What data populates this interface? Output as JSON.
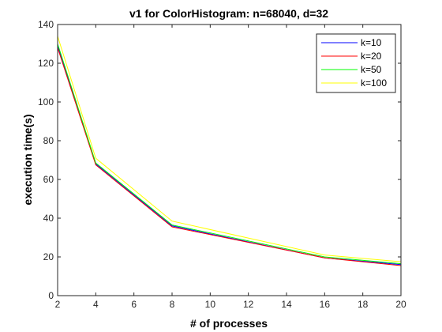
{
  "chart_data": {
    "type": "line",
    "title": "v1 for ColorHistogram: n=68040, d=32",
    "xlabel": "# of processes",
    "ylabel": "execution time(s)",
    "xlim": [
      2,
      20
    ],
    "ylim": [
      0,
      140
    ],
    "xticks": [
      2,
      4,
      6,
      8,
      10,
      12,
      14,
      16,
      18,
      20
    ],
    "yticks": [
      0,
      20,
      40,
      60,
      80,
      100,
      120,
      140
    ],
    "grid": false,
    "legend_position": "top-right",
    "x": [
      2,
      4,
      8,
      16,
      20
    ],
    "series": [
      {
        "name": "k=10",
        "color": "#0000ff",
        "values": [
          129,
          68,
          36,
          19.5,
          16
        ]
      },
      {
        "name": "k=20",
        "color": "#ff0000",
        "values": [
          128,
          67.5,
          35.5,
          19.5,
          15.5
        ]
      },
      {
        "name": "k=50",
        "color": "#00ff00",
        "values": [
          130,
          68.5,
          36.5,
          20,
          16.5
        ]
      },
      {
        "name": "k=100",
        "color": "#ffff00",
        "values": [
          134,
          71,
          38.5,
          21,
          17.5
        ]
      }
    ]
  }
}
